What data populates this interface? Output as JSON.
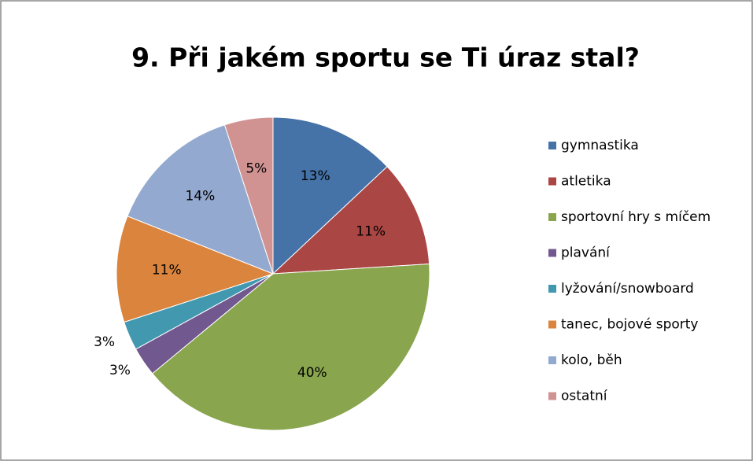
{
  "chart_data": {
    "type": "pie",
    "title": "9. Při jakém sportu se Ti úraz stal?",
    "categories": [
      "gymnastika",
      "atletika",
      "sportovní hry s míčem",
      "plavání",
      "lyžování/snowboard",
      "tanec, bojové sporty",
      "kolo, běh",
      "ostatní"
    ],
    "values": [
      13,
      11,
      40,
      3,
      3,
      11,
      14,
      5
    ],
    "value_labels": [
      "13%",
      "11%",
      "40%",
      "3%",
      "3%",
      "11%",
      "14%",
      "5%"
    ],
    "colors": [
      "#4572a7",
      "#aa4643",
      "#89a54e",
      "#71588f",
      "#4198af",
      "#db843d",
      "#93a9cf",
      "#d19392"
    ],
    "legend": "right"
  }
}
